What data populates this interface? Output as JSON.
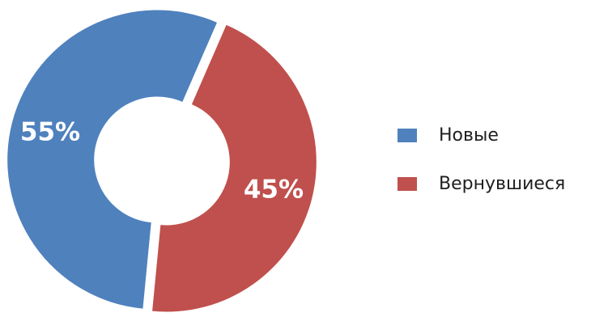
{
  "chart_data": {
    "type": "pie",
    "variant": "donut",
    "exploded": true,
    "categories": [
      "Новые",
      "Вернувшиеся"
    ],
    "values": [
      55,
      45
    ],
    "labels": [
      "55%",
      "45%"
    ],
    "colors": [
      "#4f81bd",
      "#c0504d"
    ],
    "legend_position": "right"
  }
}
